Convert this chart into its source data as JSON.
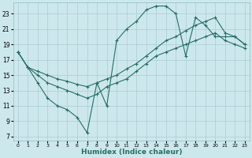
{
  "bg_color": "#cde8ec",
  "grid_color": "#aaccd4",
  "line_color": "#266e66",
  "xlabel": "Humidex (Indice chaleur)",
  "xlim": [
    -0.5,
    23.5
  ],
  "ylim": [
    6.5,
    24.5
  ],
  "yticks": [
    7,
    9,
    11,
    13,
    15,
    17,
    19,
    21,
    23
  ],
  "xticks": [
    0,
    1,
    2,
    3,
    4,
    5,
    6,
    7,
    8,
    9,
    10,
    11,
    12,
    13,
    14,
    15,
    16,
    17,
    18,
    19,
    20,
    21,
    22,
    23
  ],
  "line1_x": [
    0,
    1,
    2,
    3,
    4,
    5,
    6,
    7,
    8,
    9,
    10,
    11,
    12,
    13,
    14,
    15,
    16,
    17,
    18,
    19,
    20,
    21,
    22,
    23
  ],
  "line1_y": [
    18.0,
    16.0,
    14.0,
    12.0,
    11.0,
    10.5,
    9.5,
    7.5,
    14.0,
    11.0,
    19.5,
    21.0,
    22.0,
    23.5,
    24.0,
    24.0,
    23.0,
    17.5,
    22.5,
    21.5,
    20.0,
    20.0,
    20.0,
    19.0
  ],
  "line2_x": [
    0,
    1,
    2,
    3,
    4,
    5,
    6,
    7,
    8,
    9,
    10,
    11,
    12,
    13,
    14,
    15,
    16,
    17,
    18,
    19,
    20,
    21,
    22,
    23
  ],
  "line2_y": [
    18.0,
    16.0,
    15.5,
    15.0,
    14.5,
    14.2,
    13.8,
    13.5,
    14.0,
    14.5,
    15.0,
    15.8,
    16.5,
    17.5,
    18.5,
    19.5,
    20.0,
    20.8,
    21.5,
    22.0,
    22.5,
    20.5,
    20.0,
    19.0
  ],
  "line3_x": [
    0,
    1,
    2,
    3,
    4,
    5,
    6,
    7,
    8,
    9,
    10,
    11,
    12,
    13,
    14,
    15,
    16,
    17,
    18,
    19,
    20,
    21,
    22,
    23
  ],
  "line3_y": [
    18.0,
    16.0,
    15.0,
    14.0,
    13.5,
    13.0,
    12.5,
    12.0,
    12.5,
    13.5,
    14.0,
    14.5,
    15.5,
    16.5,
    17.5,
    18.0,
    18.5,
    19.0,
    19.5,
    20.0,
    20.5,
    19.5,
    19.0,
    18.5
  ]
}
